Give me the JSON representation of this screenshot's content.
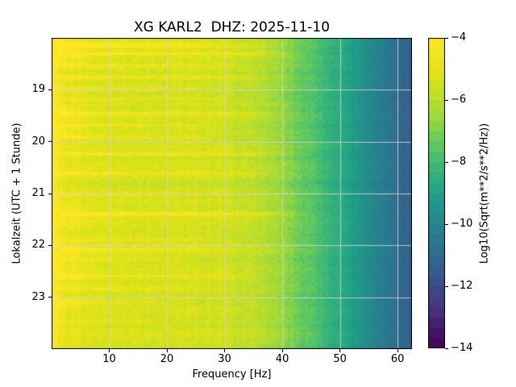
{
  "chart_data": {
    "type": "heatmap",
    "subtype": "spectrogram",
    "title": "XG KARL2  DHZ: 2025-11-10",
    "xlabel": "Frequency [Hz]",
    "ylabel": "Lokalzeit (UTC + 1 Stunde)",
    "colorbar_label": "Log10(Sqrt(m**2/s**2/Hz))",
    "x_range_hz": [
      0,
      62.5
    ],
    "y_range_hours": [
      18,
      24
    ],
    "x_ticks_hz": [
      10,
      20,
      30,
      40,
      50,
      60
    ],
    "y_ticks_hours": [
      19,
      20,
      21,
      22,
      23
    ],
    "colorbar": {
      "min": -14,
      "max": -4,
      "ticks": [
        -4,
        -6,
        -8,
        -10,
        -12,
        -14
      ],
      "steps": 30
    },
    "colormap": {
      "name": "viridis",
      "stops": [
        [
          0.0,
          "#440154"
        ],
        [
          0.125,
          "#46327e"
        ],
        [
          0.25,
          "#365c8d"
        ],
        [
          0.375,
          "#277f8e"
        ],
        [
          0.5,
          "#1fa187"
        ],
        [
          0.625,
          "#4ac16d"
        ],
        [
          0.75,
          "#a0da39"
        ],
        [
          0.875,
          "#dde318"
        ],
        [
          1.0,
          "#fde725"
        ]
      ]
    },
    "grid": {
      "show": true,
      "color": "rgba(211,211,211,0.85)"
    },
    "background_profile": {
      "freq_hz": [
        0,
        0.7,
        1.5,
        3,
        6,
        10,
        15,
        20,
        25,
        30,
        34,
        38,
        42,
        46,
        50,
        54,
        58,
        60,
        62.5
      ],
      "level_log10": [
        -4.8,
        -4.4,
        -4.7,
        -5.0,
        -5.15,
        -5.3,
        -5.35,
        -5.4,
        -5.45,
        -5.55,
        -5.8,
        -6.3,
        -7.0,
        -7.8,
        -8.6,
        -9.6,
        -10.4,
        -10.9,
        -11.3
      ]
    },
    "events": [
      {
        "time_h": 18.1,
        "fmax_hz": 30,
        "boost": 0.5
      },
      {
        "time_h": 18.18,
        "fmax_hz": 42,
        "boost": 0.55
      },
      {
        "time_h": 18.3,
        "fmax_hz": 45,
        "boost": 0.8
      },
      {
        "time_h": 18.52,
        "fmax_hz": 34,
        "boost": 0.45
      },
      {
        "time_h": 18.74,
        "fmax_hz": 40,
        "boost": 0.55
      },
      {
        "time_h": 18.97,
        "fmax_hz": 30,
        "boost": 0.4
      },
      {
        "time_h": 19.16,
        "fmax_hz": 35,
        "boost": 0.45
      },
      {
        "time_h": 19.47,
        "fmax_hz": 40,
        "boost": 0.6
      },
      {
        "time_h": 19.67,
        "fmax_hz": 34,
        "boost": 0.5
      },
      {
        "time_h": 19.92,
        "fmax_hz": 30,
        "boost": 0.45
      },
      {
        "time_h": 20.22,
        "fmax_hz": 46,
        "boost": 0.9
      },
      {
        "time_h": 20.63,
        "fmax_hz": 40,
        "boost": 0.5
      },
      {
        "time_h": 21.0,
        "fmax_hz": 25,
        "boost": 0.35
      },
      {
        "time_h": 21.38,
        "fmax_hz": 46,
        "boost": 0.85
      },
      {
        "time_h": 21.9,
        "fmax_hz": 28,
        "boost": 0.4
      },
      {
        "time_h": 22.1,
        "fmax_hz": 32,
        "boost": 0.5
      },
      {
        "time_h": 22.28,
        "fmax_hz": 25,
        "boost": 0.45
      },
      {
        "time_h": 22.6,
        "fmax_hz": 38,
        "boost": 0.55
      },
      {
        "time_h": 22.8,
        "fmax_hz": 28,
        "boost": 0.4
      },
      {
        "time_h": 23.1,
        "fmax_hz": 22,
        "boost": 0.35
      },
      {
        "time_h": 23.45,
        "fmax_hz": 20,
        "boost": 0.3
      }
    ],
    "low_freq_bursts": {
      "fmax_hz": 8,
      "boost": 0.85,
      "windows_h": [
        [
          18.0,
          18.5
        ],
        [
          19.3,
          19.95
        ],
        [
          21.25,
          21.65
        ],
        [
          22.0,
          22.65
        ],
        [
          23.0,
          23.2
        ]
      ]
    },
    "noise": {
      "seed": 42,
      "rows": 130,
      "cols": 125,
      "row_sigma": 0.3,
      "speckle": 0.45,
      "col_sigma": 0.12
    }
  }
}
